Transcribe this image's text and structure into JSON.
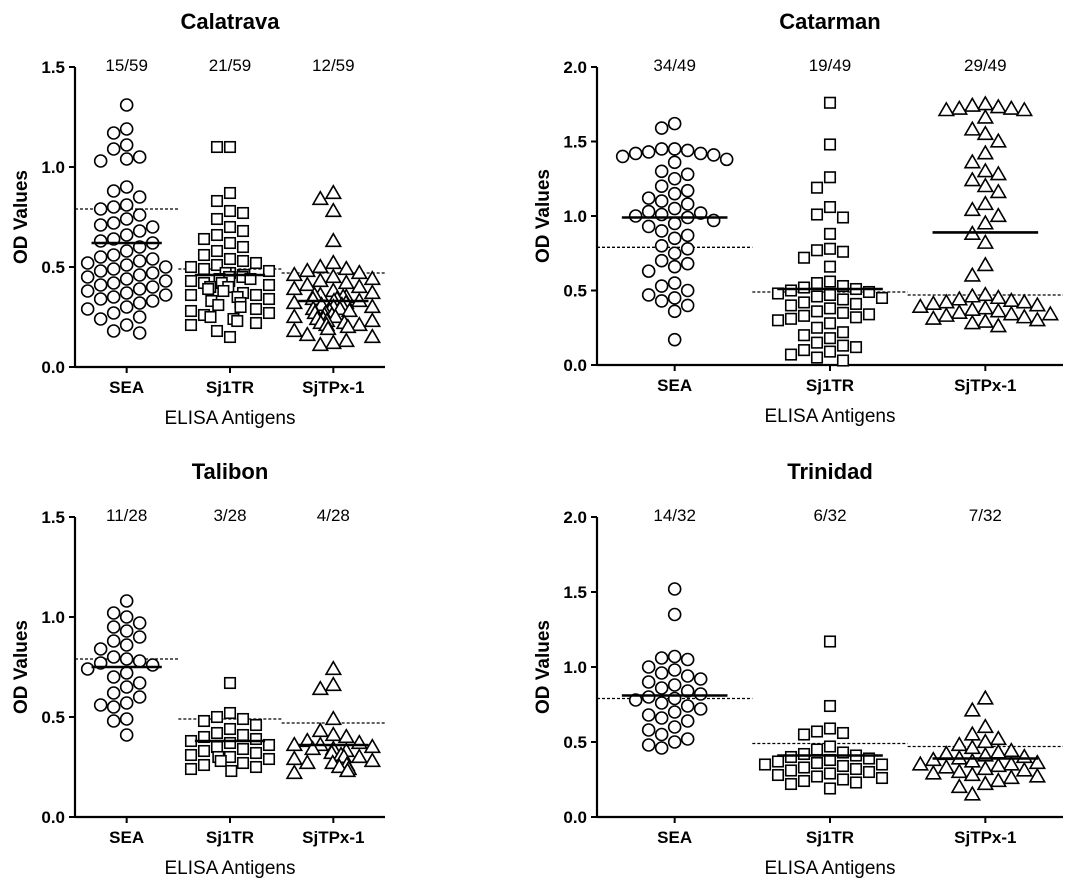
{
  "chart_data": [
    {
      "type": "scatter",
      "title": "Calatrava",
      "xlabel": "ELISA Antigens",
      "ylabel": "OD Values",
      "ylim": [
        0,
        1.5
      ],
      "yticks": [
        "0.0",
        "0.5",
        "1.0",
        "1.5"
      ],
      "categories": [
        "SEA",
        "Sj1TR",
        "SjTPx-1"
      ],
      "markers": [
        "circle",
        "square",
        "triangle"
      ],
      "positive_counts": [
        "15/59",
        "21/59",
        "12/59"
      ],
      "cutoffs": [
        0.79,
        0.49,
        0.47
      ],
      "means": [
        0.62,
        0.46,
        0.33
      ],
      "series": [
        {
          "name": "SEA",
          "values": [
            1.31,
            1.19,
            1.17,
            1.11,
            1.09,
            1.05,
            1.04,
            1.03,
            0.9,
            0.88,
            0.85,
            0.81,
            0.8,
            0.79,
            0.76,
            0.74,
            0.72,
            0.71,
            0.7,
            0.68,
            0.66,
            0.64,
            0.63,
            0.62,
            0.6,
            0.58,
            0.56,
            0.55,
            0.54,
            0.53,
            0.52,
            0.51,
            0.5,
            0.49,
            0.48,
            0.47,
            0.46,
            0.45,
            0.44,
            0.43,
            0.42,
            0.41,
            0.4,
            0.39,
            0.38,
            0.37,
            0.36,
            0.35,
            0.34,
            0.33,
            0.32,
            0.3,
            0.29,
            0.27,
            0.25,
            0.24,
            0.21,
            0.18,
            0.17
          ]
        },
        {
          "name": "Sj1TR",
          "values": [
            1.1,
            1.1,
            0.87,
            0.83,
            0.78,
            0.77,
            0.74,
            0.7,
            0.68,
            0.66,
            0.64,
            0.62,
            0.6,
            0.58,
            0.56,
            0.54,
            0.53,
            0.52,
            0.51,
            0.5,
            0.49,
            0.48,
            0.47,
            0.47,
            0.46,
            0.46,
            0.45,
            0.45,
            0.44,
            0.44,
            0.43,
            0.43,
            0.42,
            0.42,
            0.41,
            0.4,
            0.4,
            0.39,
            0.38,
            0.37,
            0.36,
            0.36,
            0.35,
            0.34,
            0.33,
            0.32,
            0.31,
            0.3,
            0.29,
            0.28,
            0.27,
            0.26,
            0.25,
            0.24,
            0.23,
            0.22,
            0.21,
            0.18,
            0.15
          ]
        },
        {
          "name": "SjTPx-1",
          "values": [
            0.87,
            0.84,
            0.78,
            0.63,
            0.52,
            0.5,
            0.49,
            0.48,
            0.47,
            0.46,
            0.45,
            0.44,
            0.43,
            0.42,
            0.41,
            0.4,
            0.39,
            0.38,
            0.37,
            0.36,
            0.36,
            0.35,
            0.35,
            0.34,
            0.34,
            0.33,
            0.33,
            0.32,
            0.32,
            0.31,
            0.31,
            0.3,
            0.3,
            0.29,
            0.29,
            0.28,
            0.28,
            0.27,
            0.27,
            0.26,
            0.26,
            0.25,
            0.25,
            0.24,
            0.24,
            0.23,
            0.23,
            0.22,
            0.22,
            0.21,
            0.21,
            0.2,
            0.19,
            0.18,
            0.16,
            0.15,
            0.13,
            0.12,
            0.11
          ]
        }
      ]
    },
    {
      "type": "scatter",
      "title": "Catarman",
      "xlabel": "ELISA Antigens",
      "ylabel": "OD Values",
      "ylim": [
        0,
        2.0
      ],
      "yticks": [
        "0.0",
        "0.5",
        "1.0",
        "1.5",
        "2.0"
      ],
      "categories": [
        "SEA",
        "Sj1TR",
        "SjTPx-1"
      ],
      "markers": [
        "circle",
        "square",
        "triangle"
      ],
      "positive_counts": [
        "34/49",
        "19/49",
        "29/49"
      ],
      "cutoffs": [
        0.79,
        0.49,
        0.47
      ],
      "means": [
        0.99,
        0.51,
        0.89
      ],
      "series": [
        {
          "name": "SEA",
          "values": [
            1.62,
            1.59,
            1.45,
            1.45,
            1.44,
            1.43,
            1.42,
            1.42,
            1.41,
            1.4,
            1.38,
            1.36,
            1.3,
            1.28,
            1.25,
            1.2,
            1.17,
            1.15,
            1.12,
            1.1,
            1.08,
            1.05,
            1.03,
            1.02,
            1.01,
            1.0,
            0.99,
            0.97,
            0.95,
            0.93,
            0.9,
            0.87,
            0.85,
            0.8,
            0.78,
            0.75,
            0.7,
            0.68,
            0.66,
            0.63,
            0.55,
            0.53,
            0.5,
            0.47,
            0.45,
            0.43,
            0.4,
            0.36,
            0.17
          ]
        },
        {
          "name": "Sj1TR",
          "values": [
            1.76,
            1.48,
            1.26,
            1.19,
            1.06,
            1.01,
            0.99,
            0.88,
            0.78,
            0.77,
            0.76,
            0.72,
            0.66,
            0.56,
            0.55,
            0.53,
            0.52,
            0.51,
            0.5,
            0.49,
            0.48,
            0.47,
            0.46,
            0.45,
            0.44,
            0.42,
            0.41,
            0.4,
            0.38,
            0.36,
            0.35,
            0.34,
            0.33,
            0.32,
            0.31,
            0.3,
            0.28,
            0.25,
            0.22,
            0.2,
            0.18,
            0.15,
            0.13,
            0.12,
            0.1,
            0.09,
            0.07,
            0.05,
            0.03
          ]
        },
        {
          "name": "SjTPx-1",
          "values": [
            1.75,
            1.74,
            1.73,
            1.72,
            1.72,
            1.71,
            1.71,
            1.66,
            1.58,
            1.55,
            1.5,
            1.42,
            1.36,
            1.3,
            1.28,
            1.24,
            1.2,
            1.16,
            1.08,
            1.04,
            1.0,
            0.95,
            0.88,
            0.82,
            0.67,
            0.6,
            0.47,
            0.46,
            0.45,
            0.44,
            0.43,
            0.42,
            0.42,
            0.41,
            0.4,
            0.39,
            0.38,
            0.37,
            0.36,
            0.35,
            0.34,
            0.34,
            0.33,
            0.32,
            0.31,
            0.3,
            0.29,
            0.28,
            0.26
          ]
        }
      ]
    },
    {
      "type": "scatter",
      "title": "Talibon",
      "xlabel": "ELISA Antigens",
      "ylabel": "OD Values",
      "ylim": [
        0,
        1.5
      ],
      "yticks": [
        "0.0",
        "0.5",
        "1.0",
        "1.5"
      ],
      "categories": [
        "SEA",
        "Sj1TR",
        "SjTPx-1"
      ],
      "markers": [
        "circle",
        "square",
        "triangle"
      ],
      "positive_counts": [
        "11/28",
        "3/28",
        "4/28"
      ],
      "cutoffs": [
        0.79,
        0.49,
        0.47
      ],
      "means": [
        0.75,
        0.38,
        0.36
      ],
      "series": [
        {
          "name": "SEA",
          "values": [
            1.08,
            1.02,
            1.0,
            0.97,
            0.95,
            0.93,
            0.9,
            0.88,
            0.86,
            0.84,
            0.8,
            0.79,
            0.78,
            0.77,
            0.76,
            0.74,
            0.72,
            0.7,
            0.67,
            0.65,
            0.62,
            0.6,
            0.57,
            0.56,
            0.55,
            0.49,
            0.48,
            0.41
          ]
        },
        {
          "name": "Sj1TR",
          "values": [
            0.67,
            0.52,
            0.5,
            0.49,
            0.48,
            0.46,
            0.44,
            0.42,
            0.41,
            0.4,
            0.39,
            0.38,
            0.37,
            0.36,
            0.35,
            0.34,
            0.33,
            0.32,
            0.31,
            0.3,
            0.3,
            0.29,
            0.28,
            0.27,
            0.26,
            0.25,
            0.24,
            0.23
          ]
        },
        {
          "name": "SjTPx-1",
          "values": [
            0.74,
            0.66,
            0.64,
            0.49,
            0.43,
            0.41,
            0.4,
            0.38,
            0.37,
            0.36,
            0.36,
            0.35,
            0.34,
            0.34,
            0.33,
            0.32,
            0.31,
            0.3,
            0.3,
            0.29,
            0.28,
            0.27,
            0.27,
            0.26,
            0.25,
            0.24,
            0.23,
            0.22
          ]
        }
      ]
    },
    {
      "type": "scatter",
      "title": "Trinidad",
      "xlabel": "ELISA Antigens",
      "ylabel": "OD Values",
      "ylim": [
        0,
        2.0
      ],
      "yticks": [
        "0.0",
        "0.5",
        "1.0",
        "1.5",
        "2.0"
      ],
      "categories": [
        "SEA",
        "Sj1TR",
        "SjTPx-1"
      ],
      "markers": [
        "circle",
        "square",
        "triangle"
      ],
      "positive_counts": [
        "14/32",
        "6/32",
        "7/32"
      ],
      "cutoffs": [
        0.79,
        0.49,
        0.47
      ],
      "means": [
        0.81,
        0.41,
        0.39
      ],
      "series": [
        {
          "name": "SEA",
          "values": [
            1.52,
            1.35,
            1.07,
            1.06,
            1.05,
            1.0,
            0.98,
            0.96,
            0.94,
            0.92,
            0.9,
            0.88,
            0.86,
            0.84,
            0.82,
            0.8,
            0.79,
            0.78,
            0.76,
            0.74,
            0.72,
            0.7,
            0.68,
            0.66,
            0.64,
            0.6,
            0.58,
            0.55,
            0.52,
            0.5,
            0.48,
            0.46
          ]
        },
        {
          "name": "Sj1TR",
          "values": [
            1.17,
            0.74,
            0.59,
            0.57,
            0.56,
            0.55,
            0.47,
            0.45,
            0.43,
            0.42,
            0.41,
            0.4,
            0.39,
            0.38,
            0.37,
            0.36,
            0.35,
            0.35,
            0.34,
            0.33,
            0.32,
            0.31,
            0.3,
            0.29,
            0.28,
            0.27,
            0.26,
            0.25,
            0.24,
            0.23,
            0.22,
            0.19
          ]
        },
        {
          "name": "SjTPx-1",
          "values": [
            0.79,
            0.71,
            0.6,
            0.55,
            0.52,
            0.5,
            0.48,
            0.46,
            0.44,
            0.43,
            0.42,
            0.41,
            0.4,
            0.39,
            0.38,
            0.37,
            0.36,
            0.35,
            0.35,
            0.34,
            0.33,
            0.32,
            0.31,
            0.3,
            0.29,
            0.28,
            0.27,
            0.26,
            0.24,
            0.22,
            0.2,
            0.15
          ]
        }
      ]
    }
  ]
}
